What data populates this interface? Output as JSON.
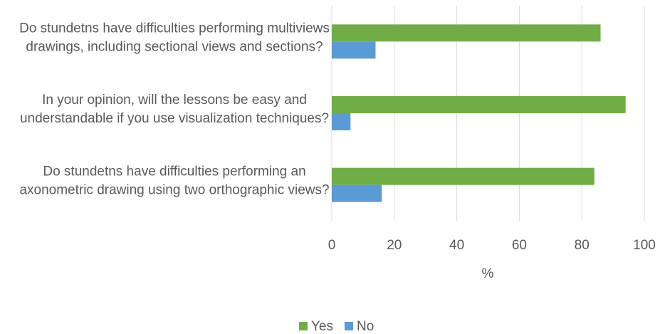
{
  "chart_data": {
    "type": "hbar",
    "categories": [
      "Do stundetns have difficulties performing multiviews drawings, including sectional views and sections?",
      "In your opinion, will the lessons be easy and understandable if you use visualization techniques?",
      "Do stundetns have difficulties performing an axonometric drawing using two orthographic views?"
    ],
    "series": [
      {
        "name": "Yes",
        "color": "#70ad47",
        "values": [
          86,
          94,
          84
        ]
      },
      {
        "name": "No",
        "color": "#5b9bd5",
        "values": [
          14,
          6,
          16
        ]
      }
    ],
    "xlabel": "%",
    "xlim": [
      0,
      100
    ],
    "xticks": [
      0,
      20,
      40,
      60,
      80,
      100
    ],
    "grid": true,
    "legend": "bottom"
  }
}
